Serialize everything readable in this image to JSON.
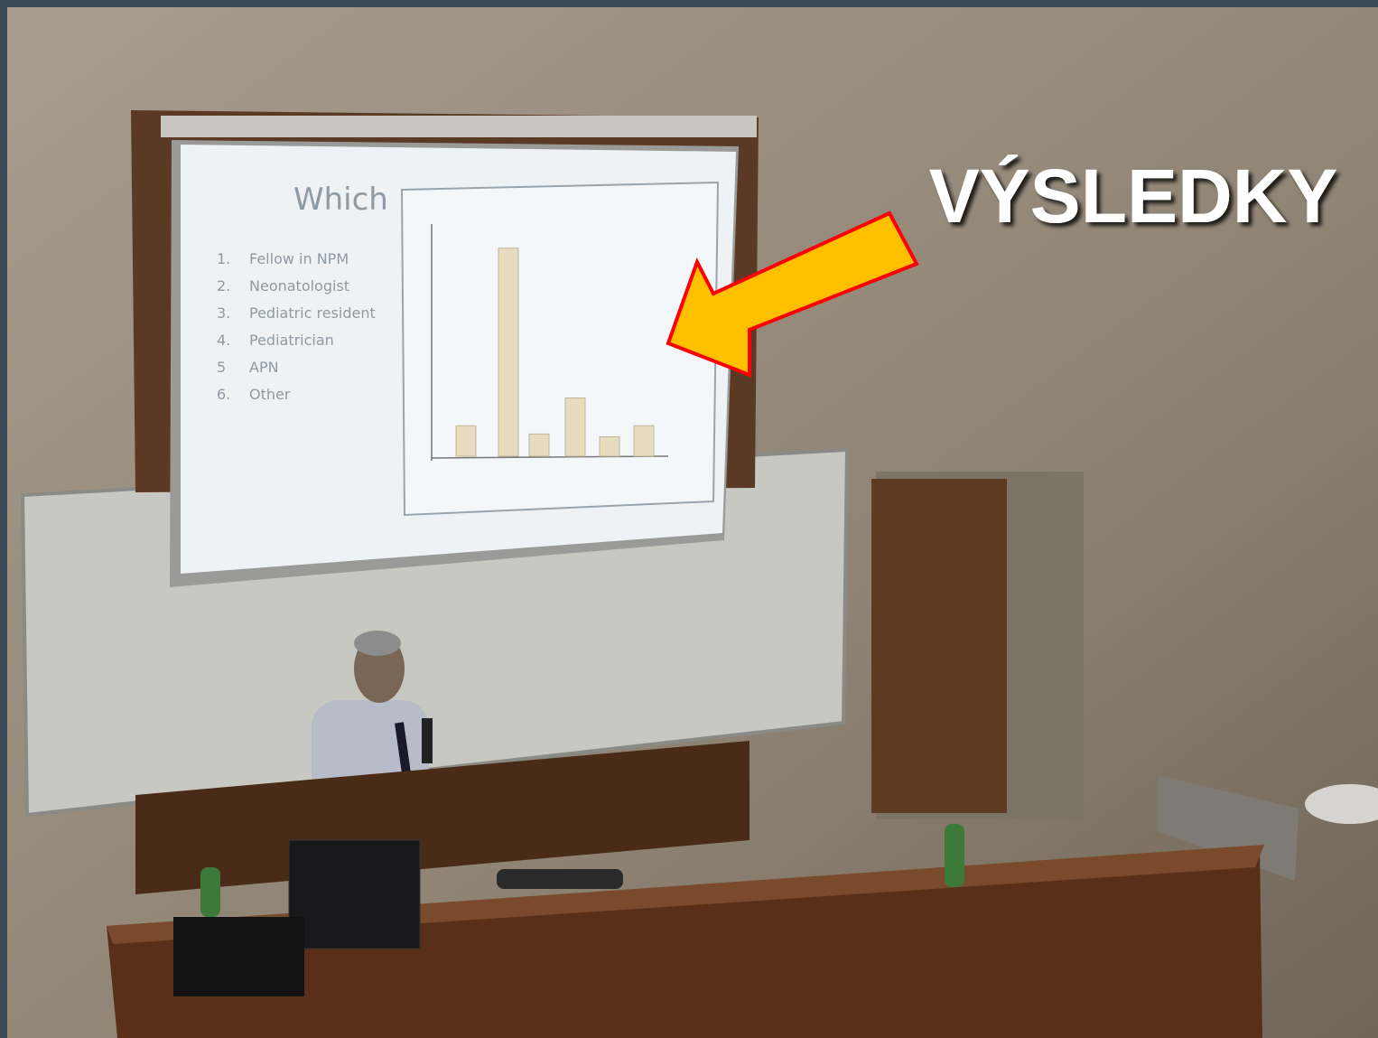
{
  "headline": "VÝSLEDKY",
  "slide": {
    "title": "Which",
    "items": [
      {
        "number": "1.",
        "label": "Fellow in NPM"
      },
      {
        "number": "2.",
        "label": "Neonatologist"
      },
      {
        "number": "3.",
        "label": "Pediatric resident"
      },
      {
        "number": "4.",
        "label": "Pediatrician"
      },
      {
        "number": "5",
        "label": "APN"
      },
      {
        "number": "6.",
        "label": "Other"
      }
    ],
    "chart": {
      "type": "bar",
      "values": [
        11,
        75,
        8,
        21,
        7,
        11
      ],
      "color": "#e8dcc0"
    }
  }
}
